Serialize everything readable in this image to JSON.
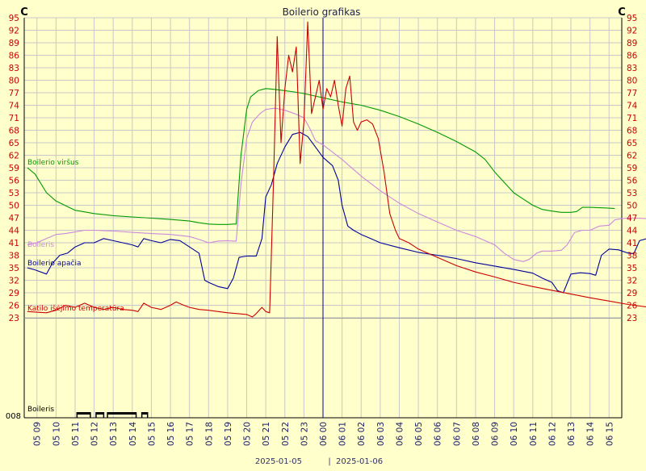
{
  "chart_data": {
    "type": "line",
    "title": "Boilerio grafikas",
    "unit_left": "C",
    "unit_right": "C",
    "y_ticks": [
      95,
      92,
      89,
      86,
      83,
      80,
      77,
      74,
      71,
      68,
      65,
      62,
      59,
      56,
      53,
      50,
      47,
      44,
      41,
      38,
      35,
      32,
      29,
      26,
      23
    ],
    "ylim": [
      23,
      95
    ],
    "x_ticks": [
      "05 09",
      "05 10",
      "05 11",
      "05 12",
      "05 13",
      "05 14",
      "05 15",
      "05 16",
      "05 17",
      "05 18",
      "05 19",
      "05 20",
      "05 21",
      "05 22",
      "05 23",
      "06 00",
      "06 01",
      "06 02",
      "06 03",
      "06 04",
      "06 05",
      "06 06",
      "06 07",
      "06 08",
      "06 09",
      "06 10",
      "06 11",
      "06 12",
      "06 13",
      "06 14",
      "06 15"
    ],
    "date_labels": [
      "2025-01-05",
      "2025-01-06"
    ],
    "date_separator": "|",
    "grid": true,
    "divider_x": "06 00",
    "series": [
      {
        "name": "Boilerio viršus",
        "color": "#009900",
        "points": [
          [
            8.5,
            59
          ],
          [
            8.9,
            57.5
          ],
          [
            9.5,
            53
          ],
          [
            10,
            51
          ],
          [
            11,
            48.8
          ],
          [
            12,
            48
          ],
          [
            13,
            47.5
          ],
          [
            14,
            47.2
          ],
          [
            15,
            46.9
          ],
          [
            16,
            46.6
          ],
          [
            17,
            46.2
          ],
          [
            17.5,
            45.8
          ],
          [
            18,
            45.5
          ],
          [
            18.5,
            45.4
          ],
          [
            19,
            45.4
          ],
          [
            19.3,
            45.5
          ],
          [
            19.45,
            45.5
          ],
          [
            19.7,
            62
          ],
          [
            20,
            73
          ],
          [
            20.2,
            76
          ],
          [
            20.6,
            77.5
          ],
          [
            21,
            78
          ],
          [
            21.5,
            77.8
          ],
          [
            22,
            77.5
          ],
          [
            22.5,
            77.2
          ],
          [
            23,
            76.8
          ],
          [
            23.5,
            76.3
          ],
          [
            24,
            75.8
          ],
          [
            25,
            74.8
          ],
          [
            26,
            74
          ],
          [
            27,
            72.8
          ],
          [
            28,
            71.3
          ],
          [
            29,
            69.5
          ],
          [
            30,
            67.5
          ],
          [
            31,
            65.3
          ],
          [
            32,
            62.8
          ],
          [
            32.5,
            61
          ],
          [
            33,
            58
          ],
          [
            33.5,
            55.5
          ],
          [
            34,
            53
          ],
          [
            34.5,
            51.5
          ],
          [
            35,
            50
          ],
          [
            35.5,
            49
          ],
          [
            36,
            48.6
          ],
          [
            36.5,
            48.3
          ],
          [
            37,
            48.3
          ],
          [
            37.3,
            48.5
          ],
          [
            37.6,
            49.5
          ],
          [
            38,
            49.5
          ],
          [
            38.5,
            49.4
          ],
          [
            39,
            49.3
          ],
          [
            39.3,
            49.2
          ]
        ]
      },
      {
        "name": "Boileris",
        "color": "#CC88DD",
        "points": [
          [
            8.5,
            40.5
          ],
          [
            9,
            41
          ],
          [
            9.5,
            42
          ],
          [
            10,
            43
          ],
          [
            10.5,
            43.2
          ],
          [
            11,
            43.6
          ],
          [
            11.5,
            44
          ],
          [
            12,
            44
          ],
          [
            13,
            43.8
          ],
          [
            14,
            43.5
          ],
          [
            15,
            43.2
          ],
          [
            16,
            43
          ],
          [
            17,
            42.5
          ],
          [
            17.5,
            41.8
          ],
          [
            18,
            41
          ],
          [
            18.5,
            41.4
          ],
          [
            19,
            41.5
          ],
          [
            19.3,
            41.4
          ],
          [
            19.45,
            41.4
          ],
          [
            19.7,
            55
          ],
          [
            20,
            66
          ],
          [
            20.3,
            70
          ],
          [
            20.7,
            72
          ],
          [
            21,
            73
          ],
          [
            21.5,
            73.3
          ],
          [
            22,
            72.8
          ],
          [
            22.5,
            72
          ],
          [
            23,
            71
          ],
          [
            23.3,
            68.5
          ],
          [
            23.6,
            65.5
          ],
          [
            24,
            64.5
          ],
          [
            25,
            61
          ],
          [
            26,
            57
          ],
          [
            27,
            53.5
          ],
          [
            28,
            50.5
          ],
          [
            29,
            48
          ],
          [
            30,
            46
          ],
          [
            31,
            44
          ],
          [
            32,
            42.5
          ],
          [
            32.5,
            41.5
          ],
          [
            33,
            40.5
          ],
          [
            33.5,
            38.5
          ],
          [
            34,
            37
          ],
          [
            34.5,
            36.5
          ],
          [
            34.8,
            37
          ],
          [
            35.2,
            38.5
          ],
          [
            35.5,
            39
          ],
          [
            36,
            39
          ],
          [
            36.5,
            39.2
          ],
          [
            36.8,
            40.5
          ],
          [
            37.2,
            43.5
          ],
          [
            37.6,
            44
          ],
          [
            38,
            44
          ],
          [
            38.5,
            45
          ],
          [
            39,
            45.2
          ],
          [
            39.3,
            46.5
          ],
          [
            40,
            47
          ],
          [
            41,
            46.8
          ],
          [
            41.3,
            46.7
          ]
        ]
      },
      {
        "name": "Boilerio apačia",
        "color": "#000099",
        "points": [
          [
            8.5,
            35
          ],
          [
            8.9,
            34.5
          ],
          [
            9.5,
            33.5
          ],
          [
            9.8,
            36
          ],
          [
            10.2,
            38
          ],
          [
            10.6,
            38.5
          ],
          [
            11,
            40
          ],
          [
            11.5,
            41
          ],
          [
            12,
            41
          ],
          [
            12.5,
            42
          ],
          [
            13,
            41.5
          ],
          [
            13.5,
            41
          ],
          [
            14,
            40.5
          ],
          [
            14.3,
            40
          ],
          [
            14.6,
            42
          ],
          [
            15,
            41.5
          ],
          [
            15.5,
            41
          ],
          [
            16,
            41.8
          ],
          [
            16.5,
            41.5
          ],
          [
            17,
            40
          ],
          [
            17.5,
            38.5
          ],
          [
            17.8,
            32
          ],
          [
            18,
            31.5
          ],
          [
            18.5,
            30.5
          ],
          [
            19,
            30
          ],
          [
            19.3,
            32.5
          ],
          [
            19.6,
            37.5
          ],
          [
            20,
            37.8
          ],
          [
            20.5,
            37.8
          ],
          [
            20.8,
            42
          ],
          [
            21,
            52
          ],
          [
            21.3,
            55
          ],
          [
            21.6,
            60
          ],
          [
            22,
            64
          ],
          [
            22.4,
            67
          ],
          [
            22.8,
            67.5
          ],
          [
            23.2,
            66.5
          ],
          [
            23.6,
            64
          ],
          [
            24,
            61.5
          ],
          [
            24.5,
            59.5
          ],
          [
            24.8,
            56
          ],
          [
            25,
            50
          ],
          [
            25.3,
            45
          ],
          [
            25.6,
            44
          ],
          [
            26,
            43
          ],
          [
            26.5,
            42
          ],
          [
            27,
            41
          ],
          [
            28,
            39.8
          ],
          [
            29,
            38.7
          ],
          [
            30,
            38
          ],
          [
            31,
            37.2
          ],
          [
            32,
            36.2
          ],
          [
            33,
            35.4
          ],
          [
            34,
            34.6
          ],
          [
            35,
            33.7
          ],
          [
            35.5,
            32.5
          ],
          [
            36,
            31.5
          ],
          [
            36.3,
            29.5
          ],
          [
            36.6,
            29
          ],
          [
            37,
            33.5
          ],
          [
            37.5,
            33.8
          ],
          [
            38,
            33.6
          ],
          [
            38.3,
            33.2
          ],
          [
            38.6,
            38
          ],
          [
            39,
            39.5
          ],
          [
            39.5,
            39.3
          ],
          [
            40,
            38.5
          ],
          [
            40.3,
            38.4
          ],
          [
            40.6,
            41.5
          ],
          [
            41,
            42
          ],
          [
            41.3,
            42.3
          ],
          [
            41.6,
            41.5
          ],
          [
            42,
            43.5
          ],
          [
            42.5,
            44.5
          ],
          [
            43,
            44.2
          ],
          [
            43.5,
            43.5
          ],
          [
            44,
            42.5
          ],
          [
            44.3,
            42
          ],
          [
            44.6,
            41.5
          ]
        ]
      },
      {
        "name": "Katilo išėjimo temperatūra",
        "color": "#CC0000",
        "points": [
          [
            8.5,
            24.5
          ],
          [
            9.5,
            24.2
          ],
          [
            10,
            24.8
          ],
          [
            10.5,
            26
          ],
          [
            11,
            25.5
          ],
          [
            11.5,
            26.5
          ],
          [
            12,
            25.5
          ],
          [
            12.5,
            25
          ],
          [
            13,
            25.5
          ],
          [
            13.5,
            25
          ],
          [
            14,
            24.8
          ],
          [
            14.3,
            24.5
          ],
          [
            14.6,
            26.5
          ],
          [
            15,
            25.5
          ],
          [
            15.5,
            25
          ],
          [
            16,
            26
          ],
          [
            16.3,
            26.8
          ],
          [
            16.7,
            26
          ],
          [
            17,
            25.5
          ],
          [
            17.5,
            25
          ],
          [
            18,
            24.8
          ],
          [
            18.5,
            24.5
          ],
          [
            19,
            24.2
          ],
          [
            19.5,
            24
          ],
          [
            20,
            23.8
          ],
          [
            20.3,
            23.2
          ],
          [
            20.5,
            24
          ],
          [
            20.8,
            25.5
          ],
          [
            21,
            24.5
          ],
          [
            21.2,
            24.2
          ],
          [
            21.4,
            55
          ],
          [
            21.6,
            90.5
          ],
          [
            21.8,
            65
          ],
          [
            22,
            78
          ],
          [
            22.2,
            86
          ],
          [
            22.4,
            82
          ],
          [
            22.6,
            88
          ],
          [
            22.8,
            60
          ],
          [
            23,
            70
          ],
          [
            23.2,
            94
          ],
          [
            23.4,
            72
          ],
          [
            23.6,
            76
          ],
          [
            23.8,
            80
          ],
          [
            24,
            73
          ],
          [
            24.2,
            78
          ],
          [
            24.4,
            76
          ],
          [
            24.6,
            80
          ],
          [
            24.8,
            74
          ],
          [
            25,
            69
          ],
          [
            25.2,
            78
          ],
          [
            25.4,
            81
          ],
          [
            25.6,
            70
          ],
          [
            25.8,
            68
          ],
          [
            26,
            70
          ],
          [
            26.3,
            70.5
          ],
          [
            26.6,
            69.5
          ],
          [
            26.9,
            66
          ],
          [
            27.2,
            58
          ],
          [
            27.5,
            48
          ],
          [
            27.8,
            44
          ],
          [
            28,
            42
          ],
          [
            28.5,
            41
          ],
          [
            29,
            39.5
          ],
          [
            30,
            37.5
          ],
          [
            31,
            35.5
          ],
          [
            32,
            34
          ],
          [
            33,
            32.8
          ],
          [
            34,
            31.5
          ],
          [
            35,
            30.5
          ],
          [
            36,
            29.6
          ],
          [
            37,
            28.7
          ],
          [
            38,
            27.8
          ],
          [
            39,
            27
          ],
          [
            40,
            26.2
          ],
          [
            41,
            25.6
          ],
          [
            42,
            25
          ],
          [
            42.5,
            24.8
          ],
          [
            43,
            25.3
          ],
          [
            43.5,
            25
          ],
          [
            44,
            24.9
          ],
          [
            44.5,
            24.7
          ],
          [
            45,
            24.6
          ],
          [
            45.3,
            24.3
          ],
          [
            45.6,
            26.5
          ],
          [
            46,
            25.5
          ],
          [
            46.5,
            25
          ],
          [
            47,
            24.5
          ],
          [
            47.5,
            24.2
          ],
          [
            47.8,
            25.5
          ],
          [
            48,
            26.5
          ],
          [
            48.5,
            25.5
          ],
          [
            49,
            25
          ],
          [
            49.5,
            27.5
          ],
          [
            50,
            27
          ],
          [
            50.5,
            26
          ],
          [
            51,
            25.5
          ],
          [
            51.5,
            25
          ],
          [
            52,
            24.7
          ]
        ]
      }
    ],
    "state_track": {
      "name": "Boileris",
      "value_label": "008",
      "on_segments": [
        [
          11.1,
          11.8
        ],
        [
          12.1,
          12.5
        ],
        [
          12.7,
          14.2
        ],
        [
          14.5,
          14.8
        ]
      ]
    }
  }
}
